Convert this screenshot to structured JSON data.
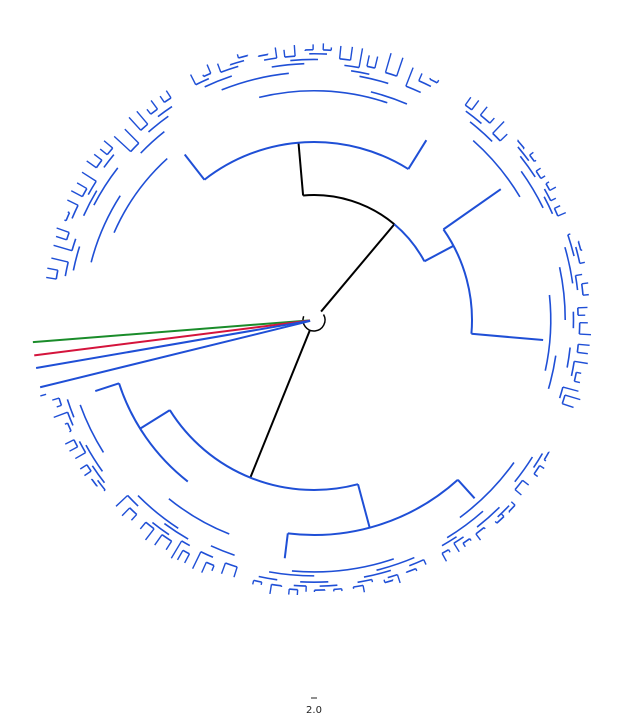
{
  "figure": {
    "type": "circular-phylogenetic-tree",
    "scale_bar_label": "2.0"
  },
  "colors": {
    "main_clade": "#1f4fd6",
    "backbone": "#000000",
    "outlier_green": "#1a8c2a",
    "outlier_red": "#d4143c",
    "outlier_blue": "#1f4fd6",
    "background": "#ffffff"
  },
  "tree": {
    "major_clades": [
      "upper-left",
      "upper-right",
      "lower",
      "outlier-branches"
    ],
    "outlier_branch_colors": [
      "green",
      "red",
      "blue",
      "blue"
    ]
  }
}
